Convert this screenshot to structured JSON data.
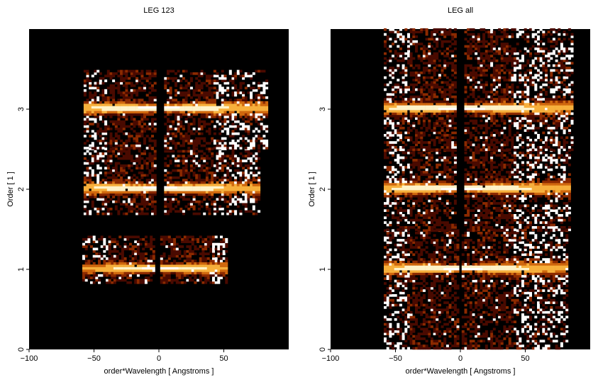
{
  "chart_data": [
    {
      "type": "heatmap",
      "title": "LEG 123",
      "xlabel": "order*Wavelength [ Angstroms ]",
      "ylabel": "Order [ 1 ]",
      "xlim": [
        -100,
        100
      ],
      "ylim": [
        0,
        4
      ],
      "xticks": [
        -100,
        -50,
        0,
        50
      ],
      "yticks": [
        0,
        1,
        2,
        3
      ],
      "colormap": [
        "#000000",
        "#4a0a00",
        "#8c2a00",
        "#d0680e",
        "#f7b03c",
        "#fff3c8",
        "#ffffff"
      ],
      "bands": [
        {
          "order": 1,
          "y0": 0.82,
          "y1": 1.4,
          "xmin": -59,
          "xmax": 53,
          "gap": [
            -2,
            1
          ]
        },
        {
          "order": 2,
          "y0": 1.68,
          "y1": 2.5,
          "xmin": -58,
          "xmax": 78,
          "gap": [
            -1,
            4
          ]
        },
        {
          "order": 3,
          "y0": 2.5,
          "y1": 3.48,
          "xmin": -58,
          "xmax": 83,
          "gap": [
            -1,
            4
          ]
        }
      ]
    },
    {
      "type": "heatmap",
      "title": "LEG all",
      "xlabel": "order*Wavelength [ Angstroms ]",
      "ylabel": "Order [ 1 ]",
      "xlim": [
        -100,
        100
      ],
      "ylim": [
        0,
        4
      ],
      "xticks": [
        -100,
        -50,
        0,
        50
      ],
      "yticks": [
        0,
        1,
        2,
        3
      ],
      "colormap": [
        "#000000",
        "#4a0a00",
        "#8c2a00",
        "#d0680e",
        "#f7b03c",
        "#fff3c8",
        "#ffffff"
      ],
      "bands": [
        {
          "order": 1,
          "y0": 0.0,
          "y1": 1.48,
          "xmin": -59,
          "xmax": 82,
          "gap": [
            -1,
            1
          ]
        },
        {
          "order": 2,
          "y0": 1.48,
          "y1": 2.48,
          "xmin": -59,
          "xmax": 85,
          "gap": [
            -2,
            3
          ]
        },
        {
          "order": 3,
          "y0": 2.48,
          "y1": 3.98,
          "xmin": -59,
          "xmax": 86,
          "gap": [
            -2,
            3
          ]
        }
      ]
    }
  ]
}
